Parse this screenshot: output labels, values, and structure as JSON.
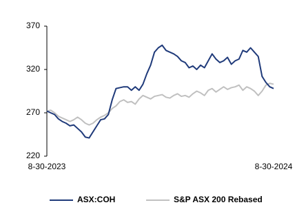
{
  "chart_data": {
    "type": "line",
    "categories": [
      "8-30-2023",
      null,
      null,
      null,
      null,
      null,
      null,
      null,
      null,
      null,
      null,
      null,
      null,
      null,
      null,
      null,
      null,
      null,
      null,
      null,
      null,
      null,
      null,
      null,
      null,
      null,
      null,
      null,
      null,
      null,
      null,
      null,
      null,
      null,
      null,
      null,
      null,
      null,
      null,
      null,
      null,
      null,
      null,
      null,
      null,
      null,
      null,
      null,
      null,
      null,
      null,
      null,
      null,
      null,
      null,
      null,
      null,
      null,
      null,
      "8-30-2024"
    ],
    "series": [
      {
        "name": "ASX:COH",
        "color": "#1f3a7a",
        "values": [
          272,
          270,
          268,
          263,
          260,
          258,
          255,
          256,
          252,
          248,
          242,
          241,
          248,
          255,
          262,
          263,
          268,
          285,
          298,
          299,
          300,
          300,
          296,
          300,
          296,
          303,
          315,
          325,
          340,
          345,
          348,
          342,
          340,
          338,
          335,
          330,
          328,
          322,
          324,
          320,
          325,
          322,
          330,
          338,
          332,
          328,
          330,
          334,
          326,
          330,
          332,
          342,
          340,
          345,
          340,
          335,
          312,
          305,
          300,
          298
        ]
      },
      {
        "name": "S&P ASX 200 Rebased",
        "color": "#c0c0c0",
        "values": [
          272,
          273,
          270,
          266,
          264,
          262,
          260,
          262,
          265,
          262,
          258,
          256,
          258,
          262,
          265,
          267,
          270,
          275,
          278,
          283,
          285,
          282,
          283,
          280,
          286,
          290,
          288,
          286,
          289,
          290,
          291,
          288,
          287,
          290,
          292,
          289,
          290,
          288,
          292,
          295,
          293,
          290,
          296,
          298,
          294,
          297,
          300,
          297,
          299,
          300,
          302,
          296,
          300,
          298,
          295,
          290,
          295,
          302,
          304,
          303
        ]
      }
    ],
    "ylim": [
      220,
      370
    ],
    "yticks": [
      220,
      270,
      320,
      370
    ],
    "legend": "bottom"
  }
}
